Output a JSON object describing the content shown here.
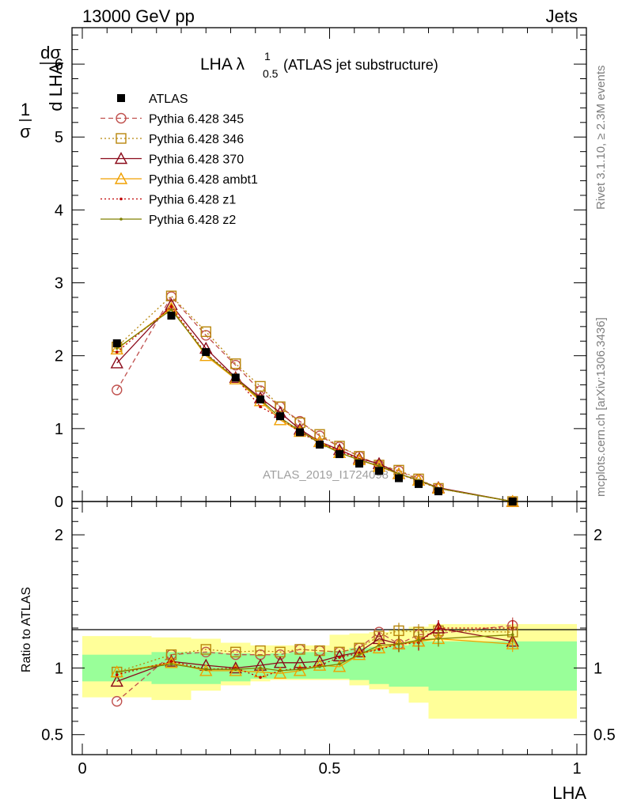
{
  "header": {
    "energy": "13000 GeV pp",
    "category": "Jets"
  },
  "side_labels": {
    "rivet": "Rivet 3.1.10, ≥ 2.3M events",
    "mcplots": "mcplots.cern.ch [arXiv:1306.3436]"
  },
  "title": {
    "main": "LHA λ",
    "sup": "1",
    "sub": "0.5",
    "note": "(ATLAS jet substructure)"
  },
  "watermark": "ATLAS_2019_I1724098",
  "colors": {
    "ATLAS": "#000000",
    "Pythia 6.428 345": "#c0504d",
    "Pythia 6.428 346": "#b8860b",
    "Pythia 6.428 370": "#8b0a1a",
    "Pythia 6.428 ambt1": "#f0a000",
    "Pythia 6.428 z1": "#c00000",
    "Pythia 6.428 z2": "#808000",
    "band_inner": "#99ff99",
    "band_outer": "#ffff99"
  },
  "chart_data": [
    {
      "type": "line",
      "panel": "main",
      "ylabel": "1/σ dσ/d LHA",
      "xlim": [
        0,
        1
      ],
      "ylim": [
        0,
        6.5
      ],
      "yticks": [
        0,
        1,
        2,
        3,
        4,
        5,
        6
      ],
      "x": [
        0.07,
        0.18,
        0.25,
        0.31,
        0.36,
        0.4,
        0.44,
        0.48,
        0.52,
        0.56,
        0.6,
        0.64,
        0.68,
        0.72,
        0.87
      ],
      "series": [
        {
          "name": "ATLAS",
          "style": "data",
          "values": [
            2.17,
            2.55,
            2.05,
            1.7,
            1.4,
            1.17,
            0.95,
            0.78,
            0.65,
            0.52,
            0.42,
            0.32,
            0.24,
            0.14,
            0.0
          ]
        },
        {
          "name": "Pythia 6.428 345",
          "style": "circle-dashed",
          "values": [
            1.53,
            2.81,
            2.28,
            1.87,
            1.52,
            1.3,
            1.1,
            0.9,
            0.75,
            0.62,
            0.5,
            0.42,
            0.3,
            0.18,
            0.0
          ]
        },
        {
          "name": "Pythia 6.428 346",
          "style": "square-dotted",
          "values": [
            2.12,
            2.82,
            2.33,
            1.89,
            1.58,
            1.3,
            1.08,
            0.92,
            0.76,
            0.62,
            0.5,
            0.43,
            0.31,
            0.18,
            0.0
          ]
        },
        {
          "name": "Pythia 6.428 370",
          "style": "triangle-solid",
          "values": [
            1.9,
            2.7,
            2.1,
            1.7,
            1.42,
            1.22,
            0.99,
            0.82,
            0.71,
            0.59,
            0.52,
            0.38,
            0.29,
            0.19,
            0.0
          ]
        },
        {
          "name": "Pythia 6.428 ambt1",
          "style": "triangle-solid",
          "values": [
            2.09,
            2.65,
            2.0,
            1.68,
            1.38,
            1.12,
            0.96,
            0.82,
            0.67,
            0.57,
            0.48,
            0.38,
            0.29,
            0.18,
            0.0
          ]
        },
        {
          "name": "Pythia 6.428 z1",
          "style": "dot-dotted",
          "values": [
            2.05,
            2.67,
            2.03,
            1.7,
            1.3,
            1.15,
            0.95,
            0.8,
            0.7,
            0.58,
            0.48,
            0.38,
            0.28,
            0.18,
            0.0
          ]
        },
        {
          "name": "Pythia 6.428 z2",
          "style": "dot-solid",
          "values": [
            2.1,
            2.63,
            2.02,
            1.69,
            1.4,
            1.15,
            0.97,
            0.8,
            0.67,
            0.57,
            0.49,
            0.38,
            0.29,
            0.18,
            0.0
          ]
        }
      ]
    },
    {
      "type": "line",
      "panel": "ratio",
      "ylabel": "Ratio to ATLAS",
      "xlabel": "LHA",
      "xlim": [
        0,
        1
      ],
      "ylim": [
        0.35,
        2.25
      ],
      "yticks": [
        0.5,
        1,
        2
      ],
      "xticks": [
        0,
        0.5,
        1
      ],
      "bands": {
        "edges": [
          0,
          0.14,
          0.22,
          0.28,
          0.34,
          0.38,
          0.42,
          0.46,
          0.5,
          0.54,
          0.58,
          0.62,
          0.66,
          0.7,
          0.74,
          1.0
        ],
        "inner_low": [
          0.9,
          0.88,
          0.88,
          0.9,
          0.92,
          0.92,
          0.92,
          0.92,
          0.92,
          0.91,
          0.88,
          0.86,
          0.86,
          0.83,
          0.83
        ],
        "inner_high": [
          1.1,
          1.12,
          1.12,
          1.11,
          1.1,
          1.11,
          1.12,
          1.12,
          1.13,
          1.15,
          1.16,
          1.17,
          1.2,
          1.2,
          1.2
        ],
        "outer_low": [
          0.78,
          0.76,
          0.83,
          0.87,
          0.9,
          0.91,
          0.91,
          0.91,
          0.91,
          0.87,
          0.84,
          0.81,
          0.74,
          0.62,
          0.62
        ],
        "outer_high": [
          1.24,
          1.23,
          1.22,
          1.19,
          1.17,
          1.17,
          1.17,
          1.17,
          1.25,
          1.26,
          1.27,
          1.29,
          1.31,
          1.33,
          1.33
        ]
      },
      "x": [
        0.07,
        0.18,
        0.25,
        0.31,
        0.36,
        0.4,
        0.44,
        0.48,
        0.52,
        0.56,
        0.6,
        0.64,
        0.68,
        0.72,
        0.87
      ],
      "series": [
        {
          "name": "Pythia 6.428 345",
          "style": "circle-dashed",
          "values": [
            0.75,
            1.1,
            1.12,
            1.1,
            1.1,
            1.1,
            1.14,
            1.13,
            1.12,
            1.15,
            1.27,
            1.18,
            1.25,
            1.26,
            1.32
          ]
        },
        {
          "name": "Pythia 6.428 346",
          "style": "square-dotted",
          "values": [
            0.97,
            1.1,
            1.14,
            1.12,
            1.13,
            1.12,
            1.14,
            1.13,
            1.12,
            1.15,
            1.24,
            1.28,
            1.27,
            1.28,
            1.27
          ]
        },
        {
          "name": "Pythia 6.428 370",
          "style": "triangle-solid",
          "values": [
            0.9,
            1.05,
            1.02,
            1.0,
            1.02,
            1.04,
            1.04,
            1.05,
            1.09,
            1.12,
            1.22,
            1.18,
            1.2,
            1.3,
            1.2
          ]
        },
        {
          "name": "Pythia 6.428 ambt1",
          "style": "triangle-solid",
          "values": [
            0.97,
            1.04,
            0.98,
            0.98,
            0.97,
            0.96,
            0.98,
            1.02,
            1.01,
            1.1,
            1.15,
            1.18,
            1.2,
            1.22,
            1.18
          ]
        },
        {
          "name": "Pythia 6.428 z1",
          "style": "dot-dotted",
          "values": [
            0.95,
            1.05,
            0.99,
            1.0,
            0.93,
            0.98,
            1.0,
            1.02,
            1.08,
            1.11,
            1.14,
            1.18,
            1.19,
            1.3,
            1.3
          ]
        },
        {
          "name": "Pythia 6.428 z2",
          "style": "dot-solid",
          "values": [
            0.97,
            1.03,
            0.99,
            0.99,
            1.0,
            0.98,
            0.99,
            1.01,
            1.03,
            1.1,
            1.17,
            1.18,
            1.21,
            1.22,
            1.25
          ]
        }
      ]
    }
  ]
}
